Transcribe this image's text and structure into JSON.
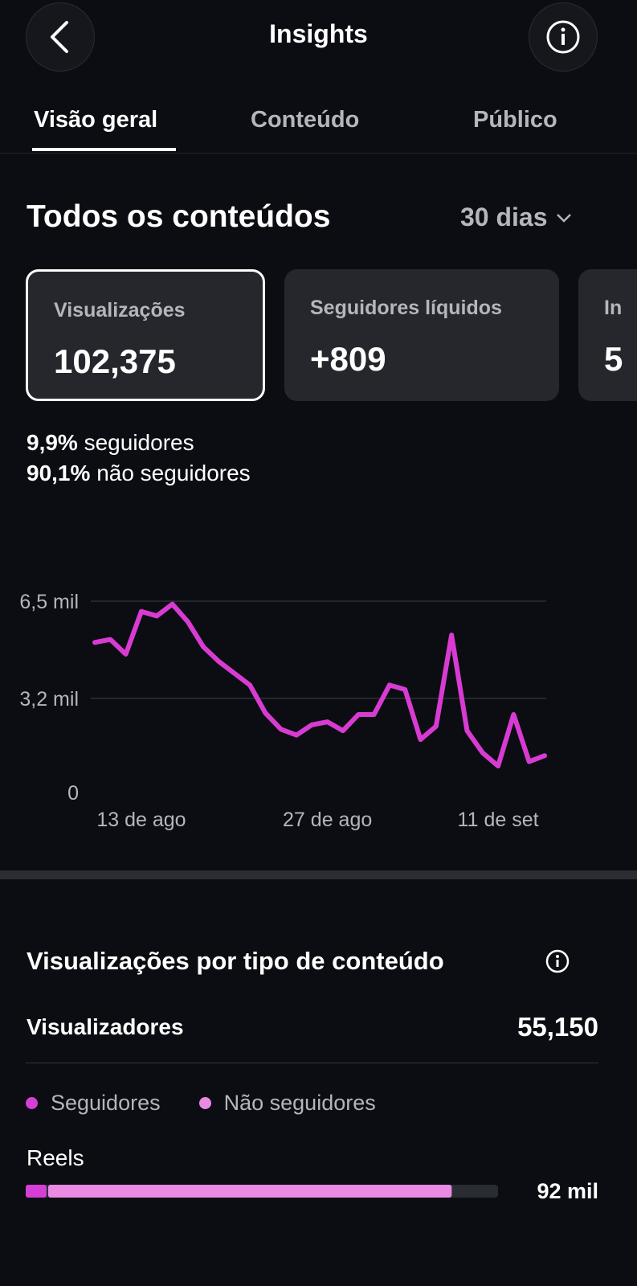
{
  "header": {
    "title": "Insights"
  },
  "tabs": [
    "Visão geral",
    "Conteúdo",
    "Público"
  ],
  "section": {
    "title": "Todos os conteúdos",
    "period": "30 dias"
  },
  "cards": [
    {
      "label": "Visualizações",
      "value": "102,375"
    },
    {
      "label": "Seguidores líquidos",
      "value": "+809"
    },
    {
      "label": "In",
      "value": "5"
    }
  ],
  "breakdown": [
    {
      "value": "9,9%",
      "text": "seguidores"
    },
    {
      "value": "90,1%",
      "text": "não seguidores"
    }
  ],
  "chart_data": {
    "type": "line",
    "categories": [
      null,
      null,
      null,
      "13 de ago",
      null,
      null,
      null,
      null,
      null,
      null,
      null,
      null,
      null,
      null,
      null,
      "27 de ago",
      null,
      null,
      null,
      null,
      null,
      null,
      null,
      null,
      null,
      null,
      "11 de set",
      null,
      null,
      null
    ],
    "series": [
      {
        "name": "Visualizações",
        "color": "#d83bd2",
        "values": [
          5100,
          5200,
          4700,
          6150,
          6000,
          6400,
          5800,
          4950,
          4450,
          4050,
          3650,
          2700,
          2150,
          1950,
          2300,
          2400,
          2100,
          2650,
          2650,
          3650,
          3500,
          1800,
          2250,
          5350,
          2100,
          1350,
          900,
          2650,
          1050,
          1250
        ]
      }
    ],
    "ylim": [
      0,
      6500
    ],
    "yticks": [
      0,
      {
        "value": 3200,
        "label": "3,2 mil"
      },
      {
        "value": 6500,
        "label": "6,5 mil"
      }
    ],
    "grid": true
  },
  "content_types": {
    "title": "Visualizações por tipo de conteúdo",
    "viewers_label": "Visualizadores",
    "viewers_value": "55,150",
    "legend": [
      {
        "name": "Seguidores",
        "color": "#d63fd6"
      },
      {
        "name": "Não seguidores",
        "color": "#e98ae3"
      }
    ],
    "rows": [
      {
        "label": "Reels",
        "values": [
          4500,
          87500
        ],
        "value_label": "92 mil"
      }
    ],
    "xlim": [
      0,
      102000
    ]
  }
}
